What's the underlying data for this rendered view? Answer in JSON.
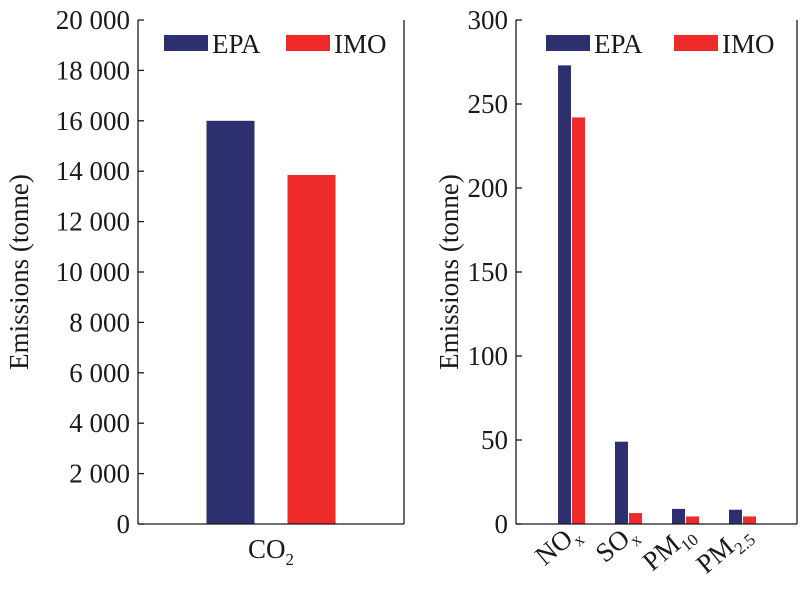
{
  "chart_data": [
    {
      "type": "bar",
      "title": "",
      "xlabel": "",
      "ylabel": "Emissions (tonne)",
      "ylim": [
        0,
        20000
      ],
      "yticks": [
        0,
        2000,
        4000,
        6000,
        8000,
        10000,
        12000,
        14000,
        16000,
        18000,
        20000
      ],
      "ytick_labels": [
        "0",
        "2 000",
        "4 000",
        "6 000",
        "8 000",
        "10 000",
        "12 000",
        "14 000",
        "16 000",
        "18 000",
        "20 000"
      ],
      "categories": [
        {
          "main": "CO",
          "sub": "2"
        }
      ],
      "series": [
        {
          "name": "EPA",
          "color": "#2e2f6f",
          "values": [
            16000
          ]
        },
        {
          "name": "IMO",
          "color": "#ee2a2a",
          "values": [
            13850
          ]
        }
      ],
      "legend": "top",
      "grid": false
    },
    {
      "type": "bar",
      "title": "",
      "xlabel": "",
      "ylabel": "Emissions (tonne)",
      "ylim": [
        0,
        300
      ],
      "yticks": [
        0,
        50,
        100,
        150,
        200,
        250,
        300
      ],
      "ytick_labels": [
        "0",
        "50",
        "100",
        "150",
        "200",
        "250",
        "300"
      ],
      "categories": [
        {
          "main": "NO",
          "sub": "x"
        },
        {
          "main": "SO",
          "sub": "x"
        },
        {
          "main": "PM",
          "sub": "10"
        },
        {
          "main": "PM",
          "sub": "2.5"
        }
      ],
      "series": [
        {
          "name": "EPA",
          "color": "#2e2f6f",
          "values": [
            273,
            49,
            9,
            8.5
          ]
        },
        {
          "name": "IMO",
          "color": "#ee2a2a",
          "values": [
            242,
            6.5,
            4.5,
            4.5
          ]
        }
      ],
      "legend": "top",
      "grid": false
    }
  ]
}
